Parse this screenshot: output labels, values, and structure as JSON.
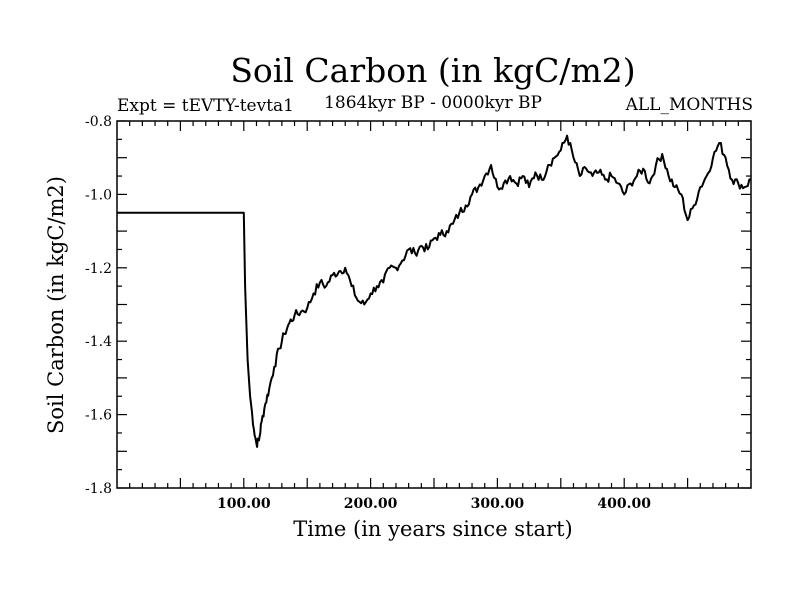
{
  "chart_data": {
    "type": "line",
    "title": "Soil Carbon (in kgC/m2)",
    "subtitle_left": "Expt = tEVTY-tevta1",
    "subtitle_center": "1864kyr BP - 0000kyr BP",
    "subtitle_right": "ALL_MONTHS",
    "xlabel": "Time (in years since start)",
    "ylabel": "Soil Carbon (in kgC/m2)",
    "xlim": [
      0,
      500
    ],
    "ylim": [
      -1.8,
      -0.8
    ],
    "x_ticks": [
      100,
      200,
      300,
      400
    ],
    "x_tick_labels": [
      "100.00",
      "200.00",
      "300.00",
      "400.00"
    ],
    "y_ticks": [
      -0.8,
      -1.0,
      -1.2,
      -1.4,
      -1.6,
      -1.8
    ],
    "y_tick_labels": [
      "-0.8",
      "-1.0",
      "-1.2",
      "-1.4",
      "-1.6",
      "-1.8"
    ],
    "series": [
      {
        "name": "Soil Carbon",
        "color": "#000000",
        "x": [
          0,
          100,
          101,
          103,
          105,
          108,
          110,
          112,
          114,
          117,
          120,
          124,
          128,
          132,
          136,
          140,
          145,
          150,
          155,
          160,
          165,
          170,
          175,
          180,
          185,
          190,
          195,
          200,
          205,
          210,
          215,
          220,
          225,
          230,
          235,
          240,
          245,
          250,
          255,
          260,
          265,
          270,
          275,
          280,
          285,
          290,
          295,
          300,
          305,
          310,
          315,
          320,
          325,
          330,
          335,
          340,
          345,
          350,
          355,
          360,
          365,
          370,
          375,
          380,
          385,
          390,
          395,
          400,
          405,
          410,
          415,
          420,
          425,
          430,
          435,
          440,
          445,
          450,
          455,
          460,
          465,
          470,
          475,
          480,
          485,
          490,
          495,
          500
        ],
        "values": [
          -1.05,
          -1.05,
          -1.25,
          -1.45,
          -1.55,
          -1.64,
          -1.68,
          -1.67,
          -1.62,
          -1.57,
          -1.53,
          -1.47,
          -1.42,
          -1.38,
          -1.35,
          -1.33,
          -1.32,
          -1.31,
          -1.27,
          -1.24,
          -1.25,
          -1.22,
          -1.21,
          -1.2,
          -1.25,
          -1.29,
          -1.3,
          -1.27,
          -1.25,
          -1.24,
          -1.2,
          -1.2,
          -1.18,
          -1.15,
          -1.16,
          -1.14,
          -1.15,
          -1.12,
          -1.11,
          -1.1,
          -1.08,
          -1.05,
          -1.03,
          -1.0,
          -0.98,
          -0.95,
          -0.92,
          -0.98,
          -0.97,
          -0.95,
          -0.97,
          -0.95,
          -0.98,
          -0.94,
          -0.96,
          -0.92,
          -0.9,
          -0.88,
          -0.84,
          -0.9,
          -0.95,
          -0.93,
          -0.95,
          -0.94,
          -0.96,
          -0.95,
          -0.97,
          -1.0,
          -0.97,
          -0.95,
          -0.93,
          -0.97,
          -0.92,
          -0.89,
          -0.95,
          -0.98,
          -1.0,
          -1.07,
          -1.03,
          -0.98,
          -0.95,
          -0.9,
          -0.86,
          -0.9,
          -0.96,
          -0.97,
          -0.98,
          -0.96
        ]
      }
    ]
  }
}
